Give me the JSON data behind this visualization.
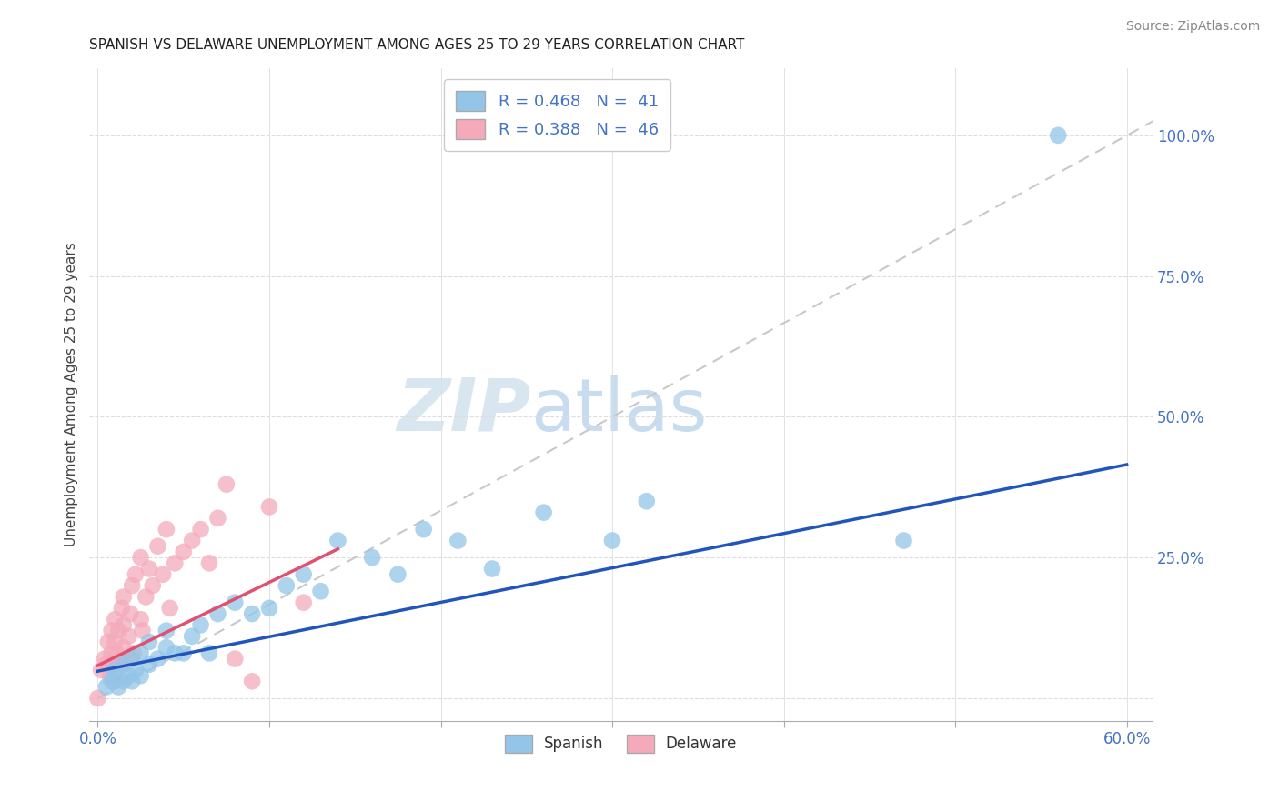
{
  "title": "SPANISH VS DELAWARE UNEMPLOYMENT AMONG AGES 25 TO 29 YEARS CORRELATION CHART",
  "source": "Source: ZipAtlas.com",
  "ylabel": "Unemployment Among Ages 25 to 29 years",
  "xlim": [
    -0.005,
    0.615
  ],
  "ylim": [
    -0.04,
    1.12
  ],
  "blue_scatter_color": "#93C5E8",
  "pink_scatter_color": "#F4AABB",
  "blue_line_color": "#2255BB",
  "pink_line_color": "#E05070",
  "dashed_color": "#C8C8C8",
  "grid_color": "#DDDDDD",
  "r_spanish": 0.468,
  "n_spanish": 41,
  "r_delaware": 0.388,
  "n_delaware": 46,
  "watermark_zip": "ZIP",
  "watermark_atlas": "atlas",
  "spanish_x": [
    0.005,
    0.008,
    0.01,
    0.01,
    0.012,
    0.015,
    0.015,
    0.018,
    0.02,
    0.02,
    0.022,
    0.025,
    0.025,
    0.03,
    0.03,
    0.035,
    0.04,
    0.04,
    0.045,
    0.05,
    0.055,
    0.06,
    0.065,
    0.07,
    0.08,
    0.09,
    0.1,
    0.11,
    0.12,
    0.13,
    0.14,
    0.16,
    0.175,
    0.19,
    0.21,
    0.23,
    0.26,
    0.3,
    0.32,
    0.47,
    0.56
  ],
  "spanish_y": [
    0.02,
    0.03,
    0.04,
    0.05,
    0.02,
    0.03,
    0.06,
    0.04,
    0.03,
    0.07,
    0.05,
    0.04,
    0.08,
    0.06,
    0.1,
    0.07,
    0.09,
    0.12,
    0.08,
    0.08,
    0.11,
    0.13,
    0.08,
    0.15,
    0.17,
    0.15,
    0.16,
    0.2,
    0.22,
    0.19,
    0.28,
    0.25,
    0.22,
    0.3,
    0.28,
    0.23,
    0.33,
    0.28,
    0.35,
    0.28,
    1.0
  ],
  "delaware_x": [
    0.002,
    0.004,
    0.005,
    0.006,
    0.007,
    0.008,
    0.008,
    0.009,
    0.01,
    0.01,
    0.01,
    0.011,
    0.012,
    0.013,
    0.014,
    0.015,
    0.015,
    0.015,
    0.017,
    0.018,
    0.019,
    0.02,
    0.021,
    0.022,
    0.025,
    0.025,
    0.026,
    0.028,
    0.03,
    0.032,
    0.035,
    0.038,
    0.04,
    0.042,
    0.045,
    0.05,
    0.055,
    0.06,
    0.065,
    0.07,
    0.075,
    0.08,
    0.09,
    0.1,
    0.12,
    0.0
  ],
  "delaware_y": [
    0.05,
    0.07,
    0.06,
    0.1,
    0.04,
    0.08,
    0.12,
    0.06,
    0.1,
    0.14,
    0.03,
    0.08,
    0.12,
    0.06,
    0.16,
    0.09,
    0.13,
    0.18,
    0.07,
    0.11,
    0.15,
    0.2,
    0.08,
    0.22,
    0.14,
    0.25,
    0.12,
    0.18,
    0.23,
    0.2,
    0.27,
    0.22,
    0.3,
    0.16,
    0.24,
    0.26,
    0.28,
    0.3,
    0.24,
    0.32,
    0.38,
    0.07,
    0.03,
    0.34,
    0.17,
    0.0
  ],
  "sp_trend_x0": 0.0,
  "sp_trend_y0": 0.048,
  "sp_trend_x1": 0.6,
  "sp_trend_y1": 0.415,
  "de_trend_x0": 0.0,
  "de_trend_y0": 0.058,
  "de_trend_x1": 0.14,
  "de_trend_y1": 0.265
}
